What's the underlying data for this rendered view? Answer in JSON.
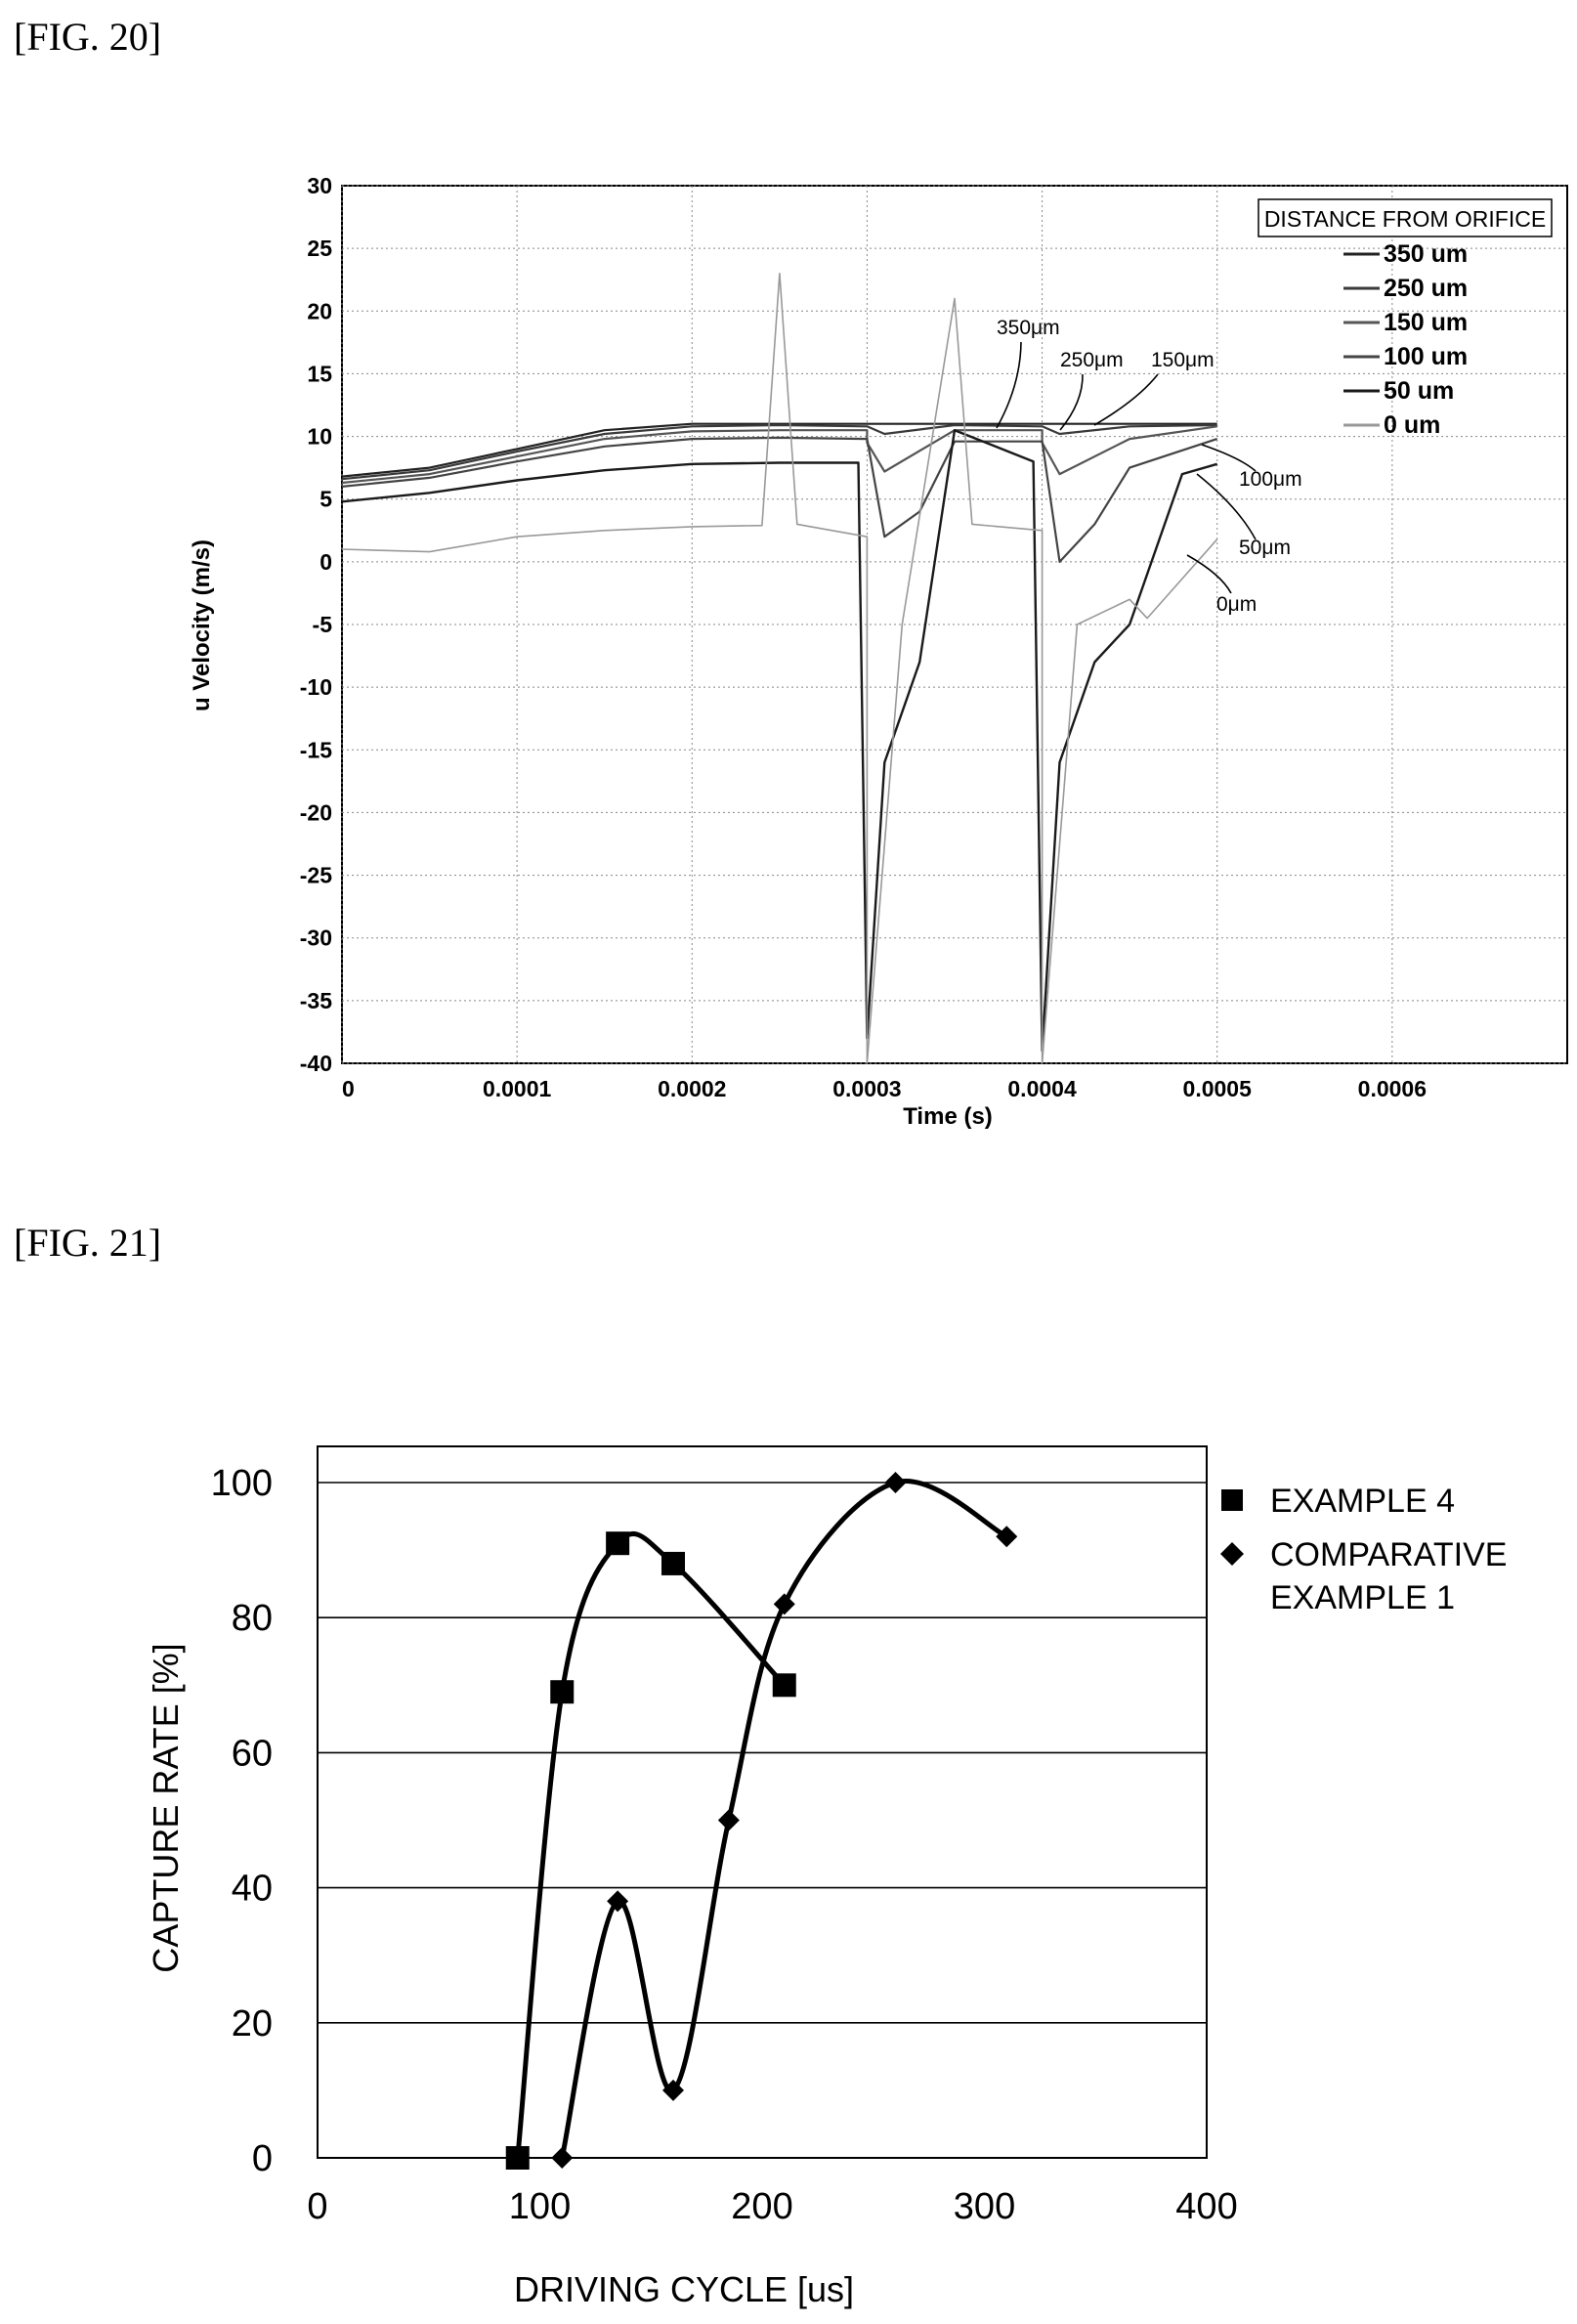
{
  "figures": {
    "fig20_label": "[FIG. 20]",
    "fig21_label": "[FIG. 21]"
  },
  "chart_data": [
    {
      "type": "line",
      "xlabel": "Time (s)",
      "ylabel": "u Velocity (m/s)",
      "xlim": [
        0,
        0.0007
      ],
      "ylim": [
        -40,
        30
      ],
      "x_ticks": [
        "0",
        "0.0001",
        "0.0002",
        "0.0003",
        "0.0004",
        "0.0005",
        "0.0006"
      ],
      "y_ticks": [
        "30",
        "25",
        "20",
        "15",
        "10",
        "5",
        "0",
        "-5",
        "-10",
        "-15",
        "-20",
        "-25",
        "-30",
        "-35",
        "-40"
      ],
      "grid": true,
      "legend_title": "DISTANCE FROM ORIFICE",
      "legend_position": "top-right",
      "annotations": [
        "350μm",
        "250μm",
        "150μm",
        "100μm",
        "50μm",
        "0μm"
      ],
      "series": [
        {
          "name": "350 um",
          "color": "#222222",
          "x": [
            0,
            5e-05,
            0.0001,
            0.00015,
            0.0002,
            0.00025,
            0.0003,
            0.00035,
            0.0004,
            0.00045,
            0.0005
          ],
          "y": [
            6.8,
            7.5,
            9.0,
            10.5,
            11.0,
            11.0,
            11.0,
            11.0,
            11.0,
            11.0,
            11.0
          ]
        },
        {
          "name": "250 um",
          "color": "#3a3a3a",
          "x": [
            0,
            5e-05,
            0.0001,
            0.00015,
            0.0002,
            0.00025,
            0.0003,
            0.00031,
            0.00035,
            0.0004,
            0.00041,
            0.00045,
            0.0005
          ],
          "y": [
            6.6,
            7.3,
            8.8,
            10.2,
            10.8,
            10.9,
            10.8,
            10.2,
            10.9,
            10.8,
            10.2,
            10.8,
            10.9
          ]
        },
        {
          "name": "150 um",
          "color": "#555555",
          "x": [
            0,
            5e-05,
            0.0001,
            0.00015,
            0.0002,
            0.00025,
            0.0003,
            0.0003,
            0.00031,
            0.00035,
            0.0004,
            0.0004,
            0.00041,
            0.00045,
            0.0005
          ],
          "y": [
            6.3,
            7.0,
            8.4,
            9.8,
            10.4,
            10.5,
            10.5,
            9.5,
            7.2,
            10.5,
            10.5,
            9.5,
            7.0,
            9.8,
            10.8
          ]
        },
        {
          "name": "100 um",
          "color": "#444444",
          "x": [
            0,
            5e-05,
            0.0001,
            0.00015,
            0.0002,
            0.00025,
            0.0003,
            0.00031,
            0.00033,
            0.00035,
            0.0004,
            0.00041,
            0.00043,
            0.00045,
            0.0005
          ],
          "y": [
            6.0,
            6.7,
            8.0,
            9.2,
            9.8,
            9.9,
            9.8,
            2.0,
            4.0,
            9.6,
            9.6,
            0.0,
            3.0,
            7.5,
            9.8
          ]
        },
        {
          "name": "50 um",
          "color": "#1a1a1a",
          "x": [
            0,
            5e-05,
            0.0001,
            0.00015,
            0.0002,
            0.00025,
            0.000295,
            0.0003,
            0.00031,
            0.00033,
            0.00035,
            0.000395,
            0.0004,
            0.00041,
            0.00043,
            0.00045,
            0.00048,
            0.0005
          ],
          "y": [
            4.8,
            5.5,
            6.5,
            7.3,
            7.8,
            7.9,
            7.9,
            -38.0,
            -16.0,
            -8.0,
            10.5,
            8.0,
            -39.0,
            -16.0,
            -8.0,
            -5.0,
            7.0,
            7.8
          ]
        },
        {
          "name": "0 um",
          "color": "#999999",
          "x": [
            0,
            5e-05,
            0.0001,
            0.00015,
            0.0002,
            0.00024,
            0.00025,
            0.00026,
            0.0003,
            0.0003,
            0.00032,
            0.00035,
            0.00036,
            0.0004,
            0.0004,
            0.00042,
            0.00045,
            0.00046,
            0.0005
          ],
          "y": [
            1.0,
            0.8,
            2.0,
            2.5,
            2.8,
            2.9,
            23.0,
            3.0,
            2.0,
            -40.0,
            -5.0,
            21.0,
            3.0,
            2.5,
            -40.0,
            -5.0,
            -3.0,
            -4.5,
            1.8
          ]
        }
      ]
    },
    {
      "type": "line",
      "xlabel": "DRIVING CYCLE [us]",
      "ylabel": "CAPTURE RATE [%]",
      "xlim": [
        0,
        400
      ],
      "ylim": [
        0,
        100
      ],
      "x_ticks": [
        "0",
        "100",
        "200",
        "300",
        "400"
      ],
      "y_ticks": [
        "0",
        "20",
        "40",
        "60",
        "80",
        "100"
      ],
      "grid": "horizontal",
      "legend_position": "right",
      "series": [
        {
          "name": "EXAMPLE 4",
          "marker": "square",
          "x": [
            90,
            110,
            135,
            160,
            210
          ],
          "y": [
            0,
            69,
            91,
            88,
            70
          ]
        },
        {
          "name": "COMPARATIVE EXAMPLE 1",
          "marker": "diamond",
          "x": [
            110,
            135,
            160,
            185,
            210,
            260,
            310
          ],
          "y": [
            0,
            38,
            10,
            50,
            82,
            100,
            92
          ]
        }
      ]
    }
  ]
}
